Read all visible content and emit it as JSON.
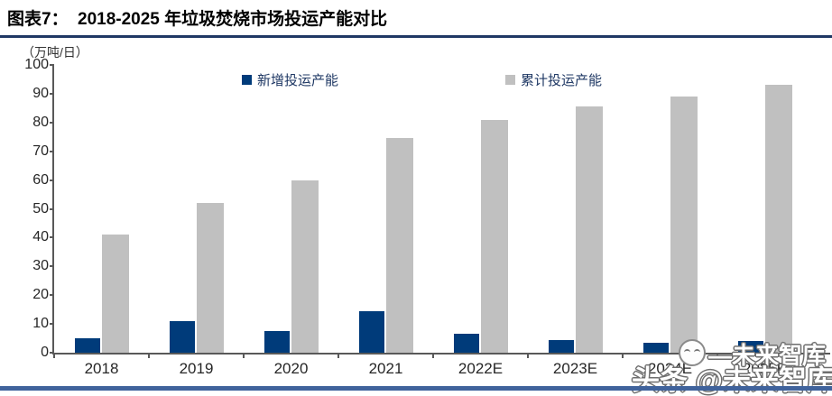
{
  "header": {
    "label": "图表7：",
    "title": "2018-2025 年垃圾焚烧市场投运产能对比"
  },
  "chart_data": {
    "type": "bar",
    "title": "2018-2025 年垃圾焚烧市场投运产能对比",
    "unit_label": "（万吨/日）",
    "categories": [
      "2018",
      "2019",
      "2020",
      "2021",
      "2022E",
      "2023E",
      "2024E",
      "2025E"
    ],
    "series": [
      {
        "name": "新增投运产能",
        "color": "#003B7A",
        "values": [
          5,
          11,
          7.5,
          14.5,
          6.5,
          4.5,
          3.5,
          4
        ]
      },
      {
        "name": "累计投运产能",
        "color": "#C0C0C0",
        "values": [
          41,
          52,
          60,
          74.5,
          81,
          85.5,
          89,
          93
        ]
      }
    ],
    "ylim": [
      0,
      100
    ],
    "ytick_step": 10,
    "grid": false,
    "legend_position": "top"
  },
  "legend": {
    "item1": "新增投运产能",
    "item2": "累计投运产能"
  },
  "watermark": {
    "small_text": "—未来智库",
    "big_text": "头条 @未来智库"
  },
  "colors": {
    "new_series": "#003B7A",
    "cumulative_series": "#C0C0C0",
    "title_rule": "#1F3864",
    "bottom_rule": "#40639C",
    "axis": "#595959"
  }
}
